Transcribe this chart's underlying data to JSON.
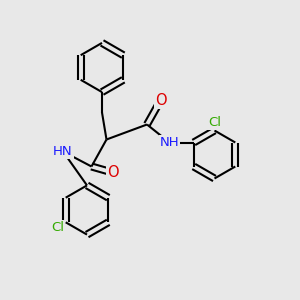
{
  "background_color": "#e8e8e8",
  "bond_color": "#000000",
  "bond_width": 1.5,
  "atom_colors": {
    "N": "#1a1aff",
    "O": "#dd0000",
    "Cl": "#33aa00"
  },
  "font_size": 9.5
}
